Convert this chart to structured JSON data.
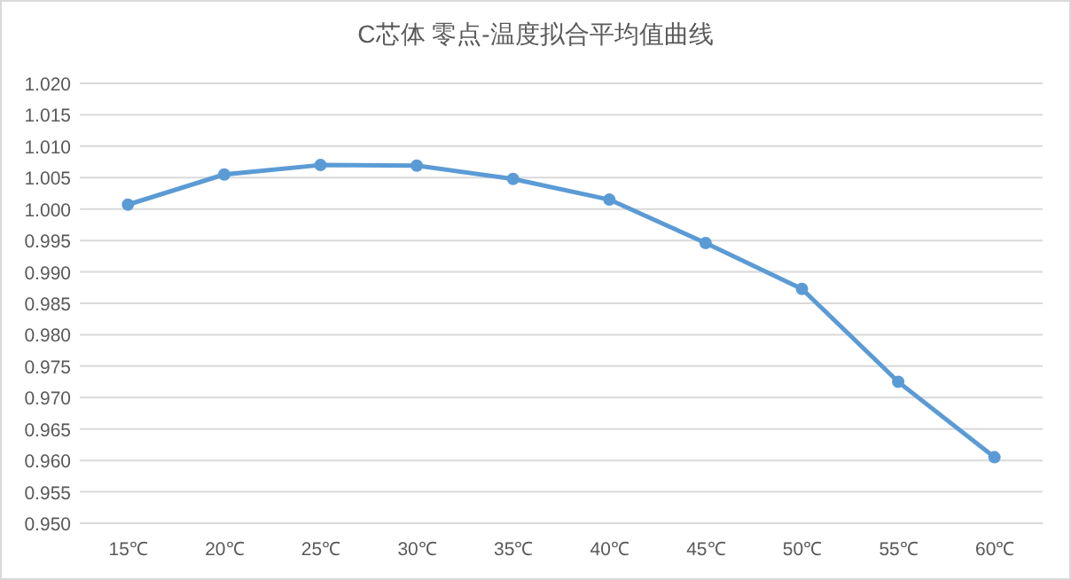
{
  "chart_data": {
    "type": "line",
    "title": "C芯体 零点-温度拟合平均值曲线",
    "categories": [
      "15℃",
      "20℃",
      "25℃",
      "30℃",
      "35℃",
      "40℃",
      "45℃",
      "50℃",
      "55℃",
      "60℃"
    ],
    "series": [
      {
        "color": "#5b9bd5",
        "values": [
          1.0007,
          1.0055,
          1.007,
          1.0069,
          1.0048,
          1.0015,
          0.9946,
          0.9873,
          0.9725,
          0.9605
        ]
      }
    ],
    "ylim": [
      0.95,
      1.02
    ],
    "yticks": [
      {
        "value": 0.95,
        "label": "0.950"
      },
      {
        "value": 0.955,
        "label": "0.955"
      },
      {
        "value": 0.96,
        "label": "0.960"
      },
      {
        "value": 0.965,
        "label": "0.965"
      },
      {
        "value": 0.97,
        "label": "0.970"
      },
      {
        "value": 0.975,
        "label": "0.975"
      },
      {
        "value": 0.98,
        "label": "0.980"
      },
      {
        "value": 0.985,
        "label": "0.985"
      },
      {
        "value": 0.99,
        "label": "0.990"
      },
      {
        "value": 0.995,
        "label": "0.995"
      },
      {
        "value": 1.0,
        "label": "1.000"
      },
      {
        "value": 1.005,
        "label": "1.005"
      },
      {
        "value": 1.01,
        "label": "1.010"
      },
      {
        "value": 1.015,
        "label": "1.015"
      },
      {
        "value": 1.02,
        "label": "1.020"
      }
    ],
    "grid": "y",
    "marker": "circle",
    "line_style": "solid"
  }
}
